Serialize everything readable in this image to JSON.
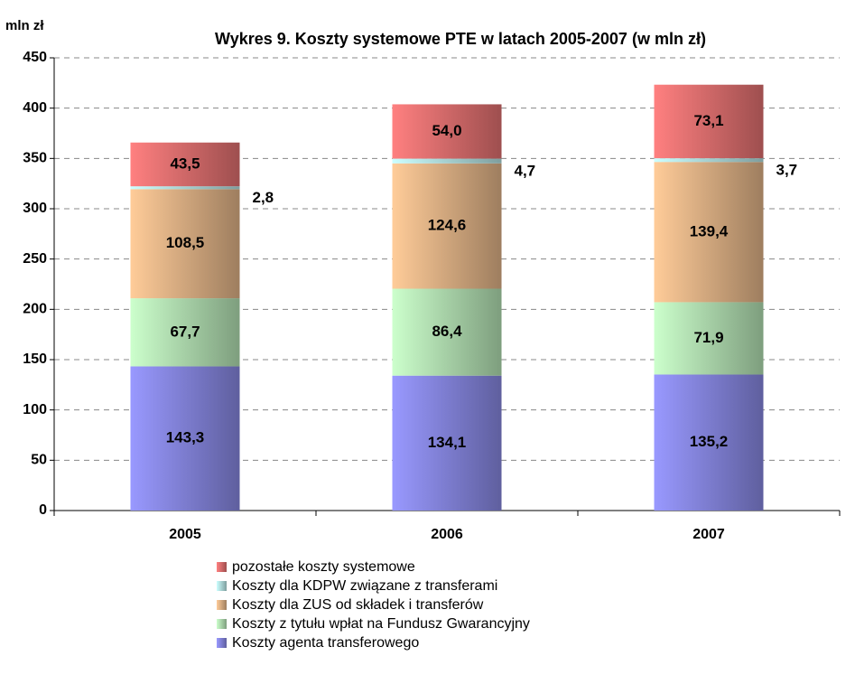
{
  "chart_data": {
    "type": "stacked_bar",
    "title": "Wykres 9. Koszty systemowe PTE w latach 2005-2007 (w mln zł)",
    "y_label": "mln zł",
    "categories": [
      "2005",
      "2006",
      "2007"
    ],
    "series": [
      {
        "name": "Koszty agenta transferowego",
        "color": "#9999ff",
        "values": [
          143.3,
          134.1,
          135.2
        ],
        "value_labels": [
          "143,3",
          "134,1",
          "135,2"
        ]
      },
      {
        "name": "Koszty z tytułu wpłat na Fundusz Gwarancyjny",
        "color": "#ccffcc",
        "values": [
          67.7,
          86.4,
          71.9
        ],
        "value_labels": [
          "67,7",
          "86,4",
          "71,9"
        ]
      },
      {
        "name": "Koszty dla ZUS od składek i transferów",
        "color": "#ffcc99",
        "values": [
          108.5,
          124.6,
          139.4
        ],
        "value_labels": [
          "108,5",
          "124,6",
          "139,4"
        ]
      },
      {
        "name": "Koszty dla KDPW związane z transferami",
        "color": "#ccffff",
        "values": [
          2.8,
          4.7,
          3.7
        ],
        "value_labels": [
          "2,8",
          "4,7",
          "3,7"
        ]
      },
      {
        "name": "pozostałe koszty systemowe",
        "color": "#ff8080",
        "values": [
          43.5,
          54.0,
          73.1
        ],
        "value_labels": [
          "43,5",
          "54,0",
          "73,1"
        ]
      }
    ],
    "ylim": [
      0,
      450
    ],
    "yticks": [
      0,
      50,
      100,
      150,
      200,
      250,
      300,
      350,
      400,
      450
    ],
    "grid": true
  }
}
